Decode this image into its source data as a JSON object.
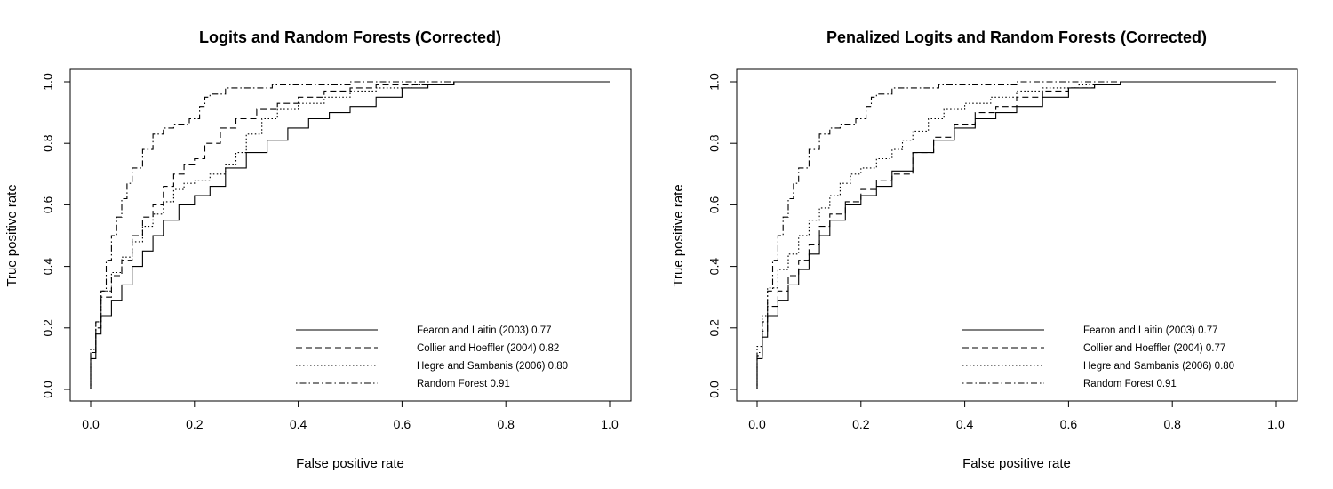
{
  "chart_data": [
    {
      "type": "line",
      "title": "Logits and Random Forests (Corrected)",
      "xlabel": "False positive rate",
      "ylabel": "True positive rate",
      "xlim": [
        0,
        1
      ],
      "ylim": [
        0,
        1
      ],
      "x_ticks": [
        "0.0",
        "0.2",
        "0.4",
        "0.6",
        "0.8",
        "1.0"
      ],
      "y_ticks": [
        "0.0",
        "0.2",
        "0.4",
        "0.6",
        "0.8",
        "1.0"
      ],
      "legend_position": "bottom-right",
      "series": [
        {
          "name": "Fearon and Laitin (2003) 0.77",
          "line_style": "solid",
          "points": [
            [
              0,
              0
            ],
            [
              0.01,
              0.1
            ],
            [
              0.02,
              0.18
            ],
            [
              0.04,
              0.24
            ],
            [
              0.06,
              0.29
            ],
            [
              0.08,
              0.34
            ],
            [
              0.1,
              0.4
            ],
            [
              0.12,
              0.45
            ],
            [
              0.14,
              0.5
            ],
            [
              0.17,
              0.55
            ],
            [
              0.2,
              0.6
            ],
            [
              0.23,
              0.63
            ],
            [
              0.26,
              0.66
            ],
            [
              0.3,
              0.72
            ],
            [
              0.34,
              0.77
            ],
            [
              0.38,
              0.81
            ],
            [
              0.42,
              0.85
            ],
            [
              0.46,
              0.88
            ],
            [
              0.5,
              0.9
            ],
            [
              0.55,
              0.92
            ],
            [
              0.6,
              0.95
            ],
            [
              0.65,
              0.98
            ],
            [
              0.7,
              0.99
            ],
            [
              0.8,
              1.0
            ],
            [
              1.0,
              1.0
            ]
          ]
        },
        {
          "name": "Collier and Hoeffler (2004) 0.82",
          "line_style": "dashed",
          "points": [
            [
              0,
              0
            ],
            [
              0.01,
              0.12
            ],
            [
              0.02,
              0.2
            ],
            [
              0.04,
              0.3
            ],
            [
              0.06,
              0.37
            ],
            [
              0.08,
              0.42
            ],
            [
              0.1,
              0.5
            ],
            [
              0.12,
              0.56
            ],
            [
              0.14,
              0.6
            ],
            [
              0.16,
              0.66
            ],
            [
              0.18,
              0.7
            ],
            [
              0.2,
              0.73
            ],
            [
              0.22,
              0.75
            ],
            [
              0.25,
              0.8
            ],
            [
              0.28,
              0.85
            ],
            [
              0.32,
              0.88
            ],
            [
              0.36,
              0.91
            ],
            [
              0.4,
              0.93
            ],
            [
              0.45,
              0.95
            ],
            [
              0.5,
              0.97
            ],
            [
              0.55,
              0.98
            ],
            [
              0.6,
              0.99
            ],
            [
              0.7,
              0.99
            ],
            [
              0.89,
              1.0
            ],
            [
              1.0,
              1.0
            ]
          ]
        },
        {
          "name": "Hegre and Sambanis (2006) 0.80",
          "line_style": "dotted",
          "points": [
            [
              0,
              0
            ],
            [
              0.01,
              0.13
            ],
            [
              0.02,
              0.22
            ],
            [
              0.04,
              0.32
            ],
            [
              0.06,
              0.38
            ],
            [
              0.08,
              0.43
            ],
            [
              0.1,
              0.48
            ],
            [
              0.12,
              0.53
            ],
            [
              0.14,
              0.57
            ],
            [
              0.16,
              0.61
            ],
            [
              0.18,
              0.65
            ],
            [
              0.2,
              0.67
            ],
            [
              0.23,
              0.68
            ],
            [
              0.26,
              0.7
            ],
            [
              0.28,
              0.73
            ],
            [
              0.3,
              0.77
            ],
            [
              0.33,
              0.83
            ],
            [
              0.36,
              0.88
            ],
            [
              0.4,
              0.91
            ],
            [
              0.45,
              0.93
            ],
            [
              0.5,
              0.95
            ],
            [
              0.55,
              0.97
            ],
            [
              0.62,
              0.98
            ],
            [
              0.7,
              0.99
            ],
            [
              0.89,
              1.0
            ],
            [
              1.0,
              1.0
            ]
          ]
        },
        {
          "name": "Random Forest 0.91",
          "line_style": "dotdash",
          "points": [
            [
              0,
              0
            ],
            [
              0.01,
              0.12
            ],
            [
              0.02,
              0.22
            ],
            [
              0.03,
              0.32
            ],
            [
              0.04,
              0.42
            ],
            [
              0.05,
              0.5
            ],
            [
              0.06,
              0.56
            ],
            [
              0.07,
              0.62
            ],
            [
              0.08,
              0.67
            ],
            [
              0.1,
              0.72
            ],
            [
              0.12,
              0.78
            ],
            [
              0.14,
              0.83
            ],
            [
              0.16,
              0.85
            ],
            [
              0.19,
              0.86
            ],
            [
              0.21,
              0.88
            ],
            [
              0.22,
              0.92
            ],
            [
              0.23,
              0.95
            ],
            [
              0.26,
              0.96
            ],
            [
              0.3,
              0.98
            ],
            [
              0.35,
              0.98
            ],
            [
              0.4,
              0.99
            ],
            [
              0.5,
              0.99
            ],
            [
              0.6,
              1.0
            ],
            [
              1.0,
              1.0
            ]
          ]
        }
      ]
    },
    {
      "type": "line",
      "title": "Penalized Logits and Random Forests (Corrected)",
      "xlabel": "False positive rate",
      "ylabel": "True positive rate",
      "xlim": [
        0,
        1
      ],
      "ylim": [
        0,
        1
      ],
      "x_ticks": [
        "0.0",
        "0.2",
        "0.4",
        "0.6",
        "0.8",
        "1.0"
      ],
      "y_ticks": [
        "0.0",
        "0.2",
        "0.4",
        "0.6",
        "0.8",
        "1.0"
      ],
      "legend_position": "bottom-right",
      "series": [
        {
          "name": "Fearon and Laitin (2003) 0.77",
          "line_style": "solid",
          "points": [
            [
              0,
              0
            ],
            [
              0.01,
              0.1
            ],
            [
              0.02,
              0.17
            ],
            [
              0.04,
              0.24
            ],
            [
              0.06,
              0.29
            ],
            [
              0.08,
              0.34
            ],
            [
              0.1,
              0.39
            ],
            [
              0.12,
              0.44
            ],
            [
              0.14,
              0.5
            ],
            [
              0.17,
              0.55
            ],
            [
              0.2,
              0.6
            ],
            [
              0.23,
              0.63
            ],
            [
              0.26,
              0.66
            ],
            [
              0.3,
              0.71
            ],
            [
              0.34,
              0.77
            ],
            [
              0.38,
              0.81
            ],
            [
              0.42,
              0.85
            ],
            [
              0.46,
              0.88
            ],
            [
              0.5,
              0.9
            ],
            [
              0.55,
              0.92
            ],
            [
              0.6,
              0.95
            ],
            [
              0.65,
              0.98
            ],
            [
              0.7,
              0.99
            ],
            [
              0.8,
              1.0
            ],
            [
              1.0,
              1.0
            ]
          ]
        },
        {
          "name": "Collier and Hoeffler (2004) 0.77",
          "line_style": "dashed",
          "points": [
            [
              0,
              0
            ],
            [
              0.01,
              0.11
            ],
            [
              0.02,
              0.19
            ],
            [
              0.04,
              0.27
            ],
            [
              0.06,
              0.32
            ],
            [
              0.08,
              0.37
            ],
            [
              0.1,
              0.42
            ],
            [
              0.12,
              0.47
            ],
            [
              0.14,
              0.53
            ],
            [
              0.17,
              0.57
            ],
            [
              0.2,
              0.61
            ],
            [
              0.23,
              0.65
            ],
            [
              0.26,
              0.68
            ],
            [
              0.3,
              0.7
            ],
            [
              0.34,
              0.77
            ],
            [
              0.38,
              0.82
            ],
            [
              0.42,
              0.86
            ],
            [
              0.46,
              0.9
            ],
            [
              0.5,
              0.92
            ],
            [
              0.55,
              0.95
            ],
            [
              0.6,
              0.97
            ],
            [
              0.65,
              0.98
            ],
            [
              0.7,
              0.99
            ],
            [
              0.8,
              1.0
            ],
            [
              1.0,
              1.0
            ]
          ]
        },
        {
          "name": "Hegre and Sambanis (2006) 0.80",
          "line_style": "dotted",
          "points": [
            [
              0,
              0
            ],
            [
              0.01,
              0.14
            ],
            [
              0.02,
              0.24
            ],
            [
              0.04,
              0.33
            ],
            [
              0.06,
              0.39
            ],
            [
              0.08,
              0.44
            ],
            [
              0.1,
              0.5
            ],
            [
              0.12,
              0.55
            ],
            [
              0.14,
              0.59
            ],
            [
              0.16,
              0.63
            ],
            [
              0.18,
              0.67
            ],
            [
              0.2,
              0.7
            ],
            [
              0.23,
              0.72
            ],
            [
              0.26,
              0.75
            ],
            [
              0.28,
              0.78
            ],
            [
              0.3,
              0.81
            ],
            [
              0.33,
              0.84
            ],
            [
              0.36,
              0.88
            ],
            [
              0.4,
              0.91
            ],
            [
              0.45,
              0.93
            ],
            [
              0.5,
              0.95
            ],
            [
              0.55,
              0.97
            ],
            [
              0.62,
              0.98
            ],
            [
              0.7,
              0.99
            ],
            [
              0.89,
              1.0
            ],
            [
              1.0,
              1.0
            ]
          ]
        },
        {
          "name": "Random Forest 0.91",
          "line_style": "dotdash",
          "points": [
            [
              0,
              0
            ],
            [
              0.01,
              0.12
            ],
            [
              0.02,
              0.22
            ],
            [
              0.03,
              0.32
            ],
            [
              0.04,
              0.42
            ],
            [
              0.05,
              0.5
            ],
            [
              0.06,
              0.56
            ],
            [
              0.07,
              0.62
            ],
            [
              0.08,
              0.67
            ],
            [
              0.1,
              0.72
            ],
            [
              0.12,
              0.78
            ],
            [
              0.14,
              0.83
            ],
            [
              0.16,
              0.85
            ],
            [
              0.19,
              0.86
            ],
            [
              0.21,
              0.88
            ],
            [
              0.22,
              0.92
            ],
            [
              0.23,
              0.95
            ],
            [
              0.26,
              0.96
            ],
            [
              0.3,
              0.98
            ],
            [
              0.35,
              0.98
            ],
            [
              0.4,
              0.99
            ],
            [
              0.5,
              0.99
            ],
            [
              0.6,
              1.0
            ],
            [
              1.0,
              1.0
            ]
          ]
        }
      ]
    }
  ]
}
